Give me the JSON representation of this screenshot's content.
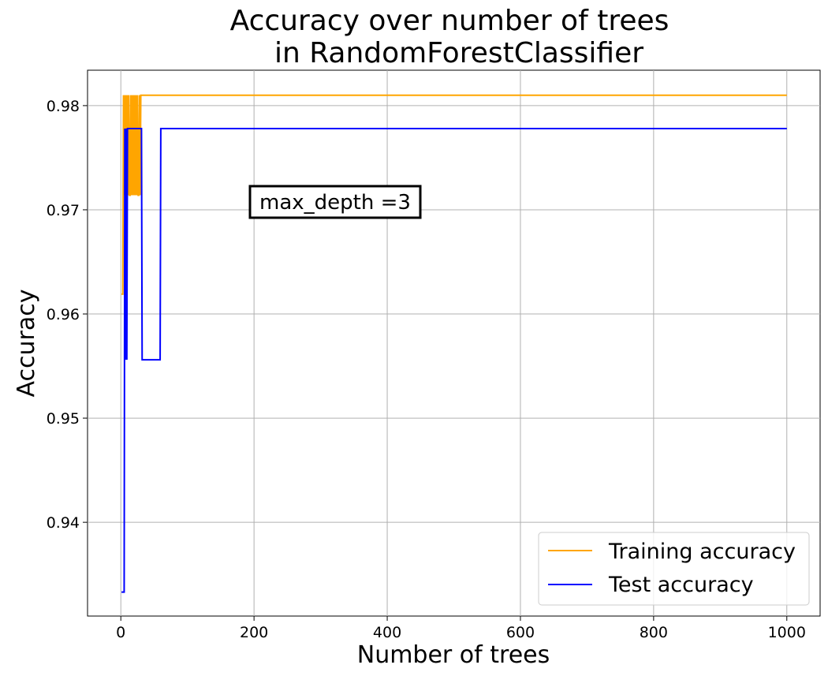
{
  "chart_data": {
    "type": "line",
    "title_lines": [
      "Accuracy over number of trees",
      "in RandomForestClassifier"
    ],
    "xlabel": "Number of trees",
    "ylabel": "Accuracy",
    "xlim": [
      -50,
      1050
    ],
    "ylim": [
      0.931,
      0.9834
    ],
    "x_ticks": [
      0,
      200,
      400,
      600,
      800,
      1000
    ],
    "y_ticks": [
      0.94,
      0.95,
      0.96,
      0.97,
      0.98
    ],
    "grid": true,
    "legend_position": "lower-right",
    "annotation": {
      "text": "max_depth =3",
      "x": 200,
      "y": 0.9703
    },
    "series": [
      {
        "name": "Training accuracy",
        "color": "#ffa500",
        "x": [
          1,
          3,
          4,
          5,
          6,
          7,
          8,
          9,
          10,
          11,
          12,
          13,
          14,
          15,
          16,
          17,
          18,
          19,
          20,
          21,
          22,
          23,
          24,
          25,
          26,
          27,
          28,
          29,
          30,
          31,
          1000
        ],
        "y": [
          0.9619,
          0.9619,
          0.981,
          0.9714,
          0.981,
          0.9714,
          0.981,
          0.9714,
          0.981,
          0.9714,
          0.981,
          0.9714,
          0.9714,
          0.981,
          0.9714,
          0.981,
          0.9714,
          0.981,
          0.9714,
          0.981,
          0.9714,
          0.981,
          0.9714,
          0.981,
          0.9714,
          0.9714,
          0.981,
          0.9714,
          0.981,
          0.981,
          0.981
        ]
      },
      {
        "name": "Test accuracy",
        "color": "#0000ff",
        "x": [
          1,
          5,
          6,
          7,
          8,
          9,
          10,
          11,
          12,
          31,
          32,
          59,
          60,
          1000
        ],
        "y": [
          0.9333,
          0.9333,
          0.9778,
          0.9556,
          0.9778,
          0.9556,
          0.9778,
          0.9778,
          0.9778,
          0.9778,
          0.9556,
          0.9556,
          0.9778,
          0.9778
        ]
      }
    ]
  }
}
